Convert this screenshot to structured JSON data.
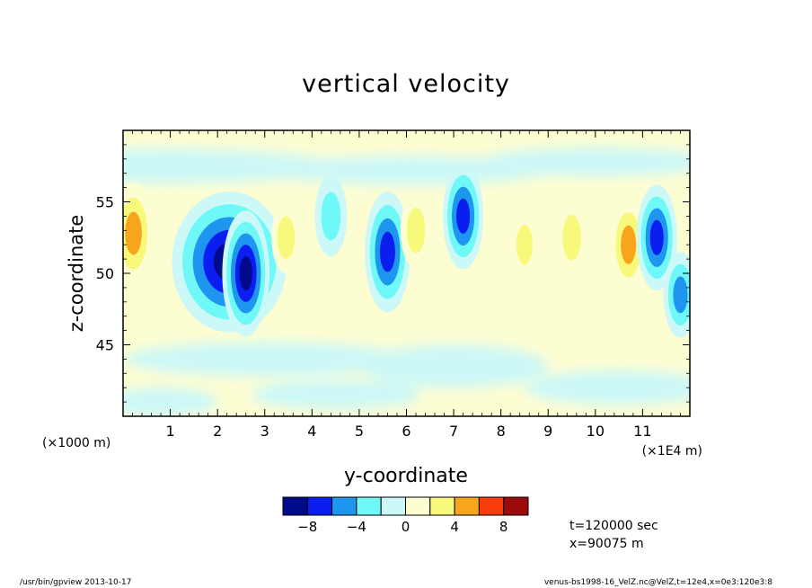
{
  "chart_data": {
    "type": "heatmap",
    "title": "vertical velocity",
    "xlabel": "y-coordinate",
    "ylabel": "z-coordinate",
    "x_unit_left": "(×1000 m)",
    "x_unit_right": "(×1E4 m)",
    "x_range": [
      0,
      12
    ],
    "y_range": [
      40,
      60
    ],
    "x_ticks": [
      1,
      2,
      3,
      4,
      5,
      6,
      7,
      8,
      9,
      10,
      11
    ],
    "x_tick_labels": [
      "1",
      "2",
      "3",
      "4",
      "5",
      "6",
      "7",
      "8",
      "9",
      "10",
      "11"
    ],
    "y_ticks": [
      45,
      50,
      55
    ],
    "y_tick_labels": [
      "45",
      "50",
      "55"
    ],
    "colorbar": {
      "levels": [
        -10,
        -8,
        -6,
        -4,
        -2,
        0,
        2,
        4,
        6,
        8,
        10
      ],
      "tick_labels": [
        "−8",
        "−4",
        "0",
        "4",
        "8"
      ],
      "tick_values": [
        -8,
        -4,
        0,
        4,
        8
      ],
      "colors": [
        "#000a8a",
        "#0a1ef0",
        "#1e96f0",
        "#6ef8f8",
        "#ccf8f8",
        "#fdfdd2",
        "#f8f87a",
        "#f8a51e",
        "#fb3d0e",
        "#9c0a0a"
      ]
    },
    "features": [
      {
        "y": 0.22,
        "z": 52.8,
        "value": 5.5
      },
      {
        "y": 1.9,
        "z": 51.0,
        "value": -7
      },
      {
        "y": 2.25,
        "z": 50.8,
        "value": -9.5
      },
      {
        "y": 2.6,
        "z": 50.0,
        "value": -8
      },
      {
        "y": 3.45,
        "z": 52.5,
        "value": 2.5
      },
      {
        "y": 4.4,
        "z": 54.0,
        "value": -3.5
      },
      {
        "y": 5.6,
        "z": 51.5,
        "value": -7.5
      },
      {
        "y": 6.2,
        "z": 53.0,
        "value": 3
      },
      {
        "y": 7.2,
        "z": 54.0,
        "value": -6
      },
      {
        "y": 8.5,
        "z": 52.0,
        "value": 2
      },
      {
        "y": 9.5,
        "z": 52.5,
        "value": 3
      },
      {
        "y": 10.7,
        "z": 52.0,
        "value": 4.5
      },
      {
        "y": 11.3,
        "z": 52.5,
        "value": -6
      },
      {
        "y": 11.8,
        "z": 48.5,
        "value": -4
      }
    ]
  },
  "annotations": {
    "time": "t=120000 sec",
    "position": "x=90075 m"
  },
  "footer": {
    "left": "/usr/bin/gpview   2013-10-17",
    "right": "venus-bs1998-16_VelZ.nc@VelZ,t=12e4,x=0e3:120e3:8"
  }
}
